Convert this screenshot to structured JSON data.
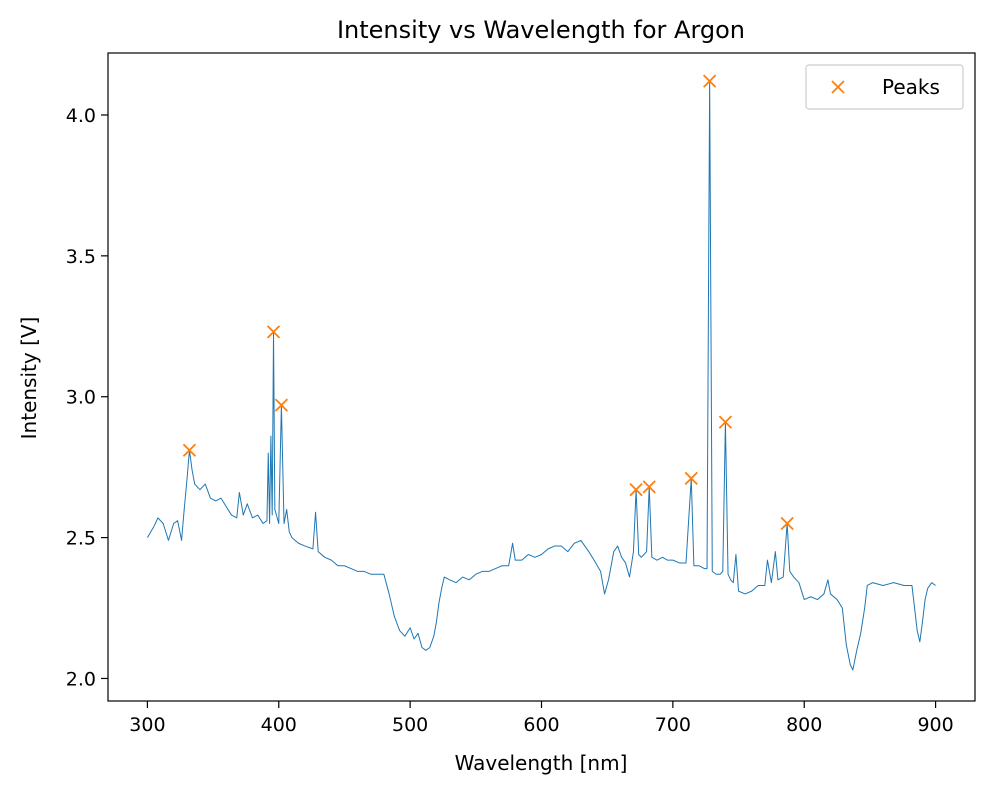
{
  "chart_data": {
    "type": "line",
    "title": "Intensity vs Wavelength for Argon",
    "xlabel": "Wavelength [nm]",
    "ylabel": "Intensity [V]",
    "xlim": [
      270,
      930
    ],
    "ylim": [
      1.92,
      4.22
    ],
    "xticks": [
      300,
      400,
      500,
      600,
      700,
      800,
      900
    ],
    "yticks": [
      2.0,
      2.5,
      3.0,
      3.5,
      4.0
    ],
    "grid": false,
    "legend": {
      "placement": "top-right",
      "entries": [
        "Peaks"
      ]
    },
    "colors": {
      "line": "#1f77b4",
      "peaks": "#ff7f0e"
    },
    "series": [
      {
        "values": [
          [
            300,
            2.5
          ],
          [
            305,
            2.54
          ],
          [
            308,
            2.57
          ],
          [
            312,
            2.55
          ],
          [
            316,
            2.49
          ],
          [
            320,
            2.55
          ],
          [
            323,
            2.56
          ],
          [
            326,
            2.49
          ],
          [
            328,
            2.6
          ],
          [
            330,
            2.7
          ],
          [
            332,
            2.81
          ],
          [
            334,
            2.74
          ],
          [
            336,
            2.69
          ],
          [
            340,
            2.67
          ],
          [
            344,
            2.69
          ],
          [
            348,
            2.64
          ],
          [
            352,
            2.63
          ],
          [
            356,
            2.64
          ],
          [
            360,
            2.61
          ],
          [
            364,
            2.58
          ],
          [
            368,
            2.57
          ],
          [
            370,
            2.66
          ],
          [
            373,
            2.58
          ],
          [
            376,
            2.62
          ],
          [
            380,
            2.57
          ],
          [
            384,
            2.58
          ],
          [
            388,
            2.55
          ],
          [
            391,
            2.56
          ],
          [
            392,
            2.8
          ],
          [
            393,
            2.55
          ],
          [
            394,
            2.86
          ],
          [
            395,
            2.58
          ],
          [
            396,
            3.23
          ],
          [
            397,
            2.6
          ],
          [
            400,
            2.55
          ],
          [
            402,
            2.97
          ],
          [
            404,
            2.55
          ],
          [
            406,
            2.6
          ],
          [
            408,
            2.52
          ],
          [
            410,
            2.5
          ],
          [
            415,
            2.48
          ],
          [
            420,
            2.47
          ],
          [
            426,
            2.46
          ],
          [
            428,
            2.59
          ],
          [
            430,
            2.45
          ],
          [
            435,
            2.43
          ],
          [
            440,
            2.42
          ],
          [
            445,
            2.4
          ],
          [
            450,
            2.4
          ],
          [
            455,
            2.39
          ],
          [
            460,
            2.38
          ],
          [
            465,
            2.38
          ],
          [
            470,
            2.37
          ],
          [
            475,
            2.37
          ],
          [
            480,
            2.37
          ],
          [
            484,
            2.3
          ],
          [
            488,
            2.22
          ],
          [
            492,
            2.17
          ],
          [
            496,
            2.15
          ],
          [
            500,
            2.18
          ],
          [
            503,
            2.14
          ],
          [
            506,
            2.16
          ],
          [
            509,
            2.11
          ],
          [
            512,
            2.1
          ],
          [
            515,
            2.11
          ],
          [
            518,
            2.15
          ],
          [
            520,
            2.2
          ],
          [
            522,
            2.27
          ],
          [
            524,
            2.32
          ],
          [
            526,
            2.36
          ],
          [
            530,
            2.35
          ],
          [
            535,
            2.34
          ],
          [
            540,
            2.36
          ],
          [
            545,
            2.35
          ],
          [
            550,
            2.37
          ],
          [
            555,
            2.38
          ],
          [
            560,
            2.38
          ],
          [
            565,
            2.39
          ],
          [
            570,
            2.4
          ],
          [
            575,
            2.4
          ],
          [
            578,
            2.48
          ],
          [
            580,
            2.42
          ],
          [
            585,
            2.42
          ],
          [
            590,
            2.44
          ],
          [
            595,
            2.43
          ],
          [
            600,
            2.44
          ],
          [
            605,
            2.46
          ],
          [
            610,
            2.47
          ],
          [
            615,
            2.47
          ],
          [
            620,
            2.45
          ],
          [
            625,
            2.48
          ],
          [
            630,
            2.49
          ],
          [
            633,
            2.47
          ],
          [
            636,
            2.45
          ],
          [
            640,
            2.42
          ],
          [
            645,
            2.38
          ],
          [
            648,
            2.3
          ],
          [
            651,
            2.35
          ],
          [
            655,
            2.45
          ],
          [
            658,
            2.47
          ],
          [
            661,
            2.43
          ],
          [
            664,
            2.41
          ],
          [
            667,
            2.36
          ],
          [
            670,
            2.45
          ],
          [
            672,
            2.67
          ],
          [
            674,
            2.44
          ],
          [
            676,
            2.43
          ],
          [
            678,
            2.44
          ],
          [
            680,
            2.45
          ],
          [
            682,
            2.68
          ],
          [
            684,
            2.43
          ],
          [
            688,
            2.42
          ],
          [
            692,
            2.43
          ],
          [
            696,
            2.42
          ],
          [
            700,
            2.42
          ],
          [
            705,
            2.41
          ],
          [
            710,
            2.41
          ],
          [
            714,
            2.71
          ],
          [
            716,
            2.4
          ],
          [
            720,
            2.4
          ],
          [
            724,
            2.39
          ],
          [
            726,
            2.39
          ],
          [
            728,
            4.12
          ],
          [
            730,
            2.38
          ],
          [
            733,
            2.37
          ],
          [
            736,
            2.37
          ],
          [
            738,
            2.38
          ],
          [
            740,
            2.91
          ],
          [
            742,
            2.37
          ],
          [
            744,
            2.35
          ],
          [
            746,
            2.34
          ],
          [
            748,
            2.44
          ],
          [
            750,
            2.31
          ],
          [
            755,
            2.3
          ],
          [
            760,
            2.31
          ],
          [
            765,
            2.33
          ],
          [
            770,
            2.33
          ],
          [
            772,
            2.42
          ],
          [
            775,
            2.34
          ],
          [
            778,
            2.45
          ],
          [
            780,
            2.35
          ],
          [
            784,
            2.36
          ],
          [
            787,
            2.55
          ],
          [
            789,
            2.38
          ],
          [
            792,
            2.36
          ],
          [
            796,
            2.34
          ],
          [
            800,
            2.28
          ],
          [
            805,
            2.29
          ],
          [
            810,
            2.28
          ],
          [
            815,
            2.3
          ],
          [
            818,
            2.35
          ],
          [
            820,
            2.3
          ],
          [
            825,
            2.28
          ],
          [
            829,
            2.25
          ],
          [
            832,
            2.12
          ],
          [
            835,
            2.05
          ],
          [
            837,
            2.03
          ],
          [
            840,
            2.1
          ],
          [
            843,
            2.16
          ],
          [
            846,
            2.25
          ],
          [
            848,
            2.33
          ],
          [
            852,
            2.34
          ],
          [
            860,
            2.33
          ],
          [
            868,
            2.34
          ],
          [
            876,
            2.33
          ],
          [
            882,
            2.33
          ],
          [
            884,
            2.25
          ],
          [
            886,
            2.17
          ],
          [
            888,
            2.13
          ],
          [
            890,
            2.2
          ],
          [
            892,
            2.28
          ],
          [
            894,
            2.32
          ],
          [
            897,
            2.34
          ],
          [
            900,
            2.33
          ]
        ]
      },
      {
        "name": "Peaks",
        "values": [
          [
            332,
            2.81
          ],
          [
            396,
            3.23
          ],
          [
            402,
            2.97
          ],
          [
            672,
            2.67
          ],
          [
            682,
            2.68
          ],
          [
            714,
            2.71
          ],
          [
            728,
            4.12
          ],
          [
            740,
            2.91
          ],
          [
            787,
            2.55
          ]
        ]
      }
    ]
  }
}
